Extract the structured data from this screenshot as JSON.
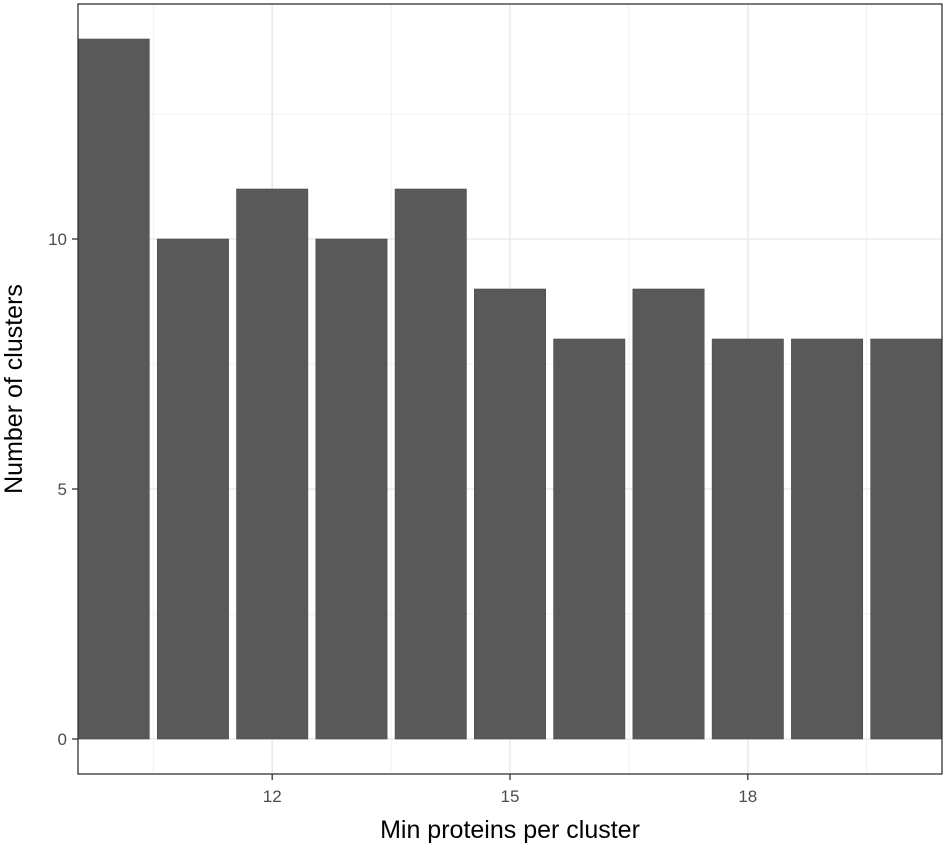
{
  "chart_data": {
    "type": "bar",
    "x": [
      10,
      11,
      12,
      13,
      14,
      15,
      16,
      17,
      18,
      19,
      20
    ],
    "values": [
      14,
      10,
      11,
      10,
      11,
      9,
      8,
      9,
      8,
      8,
      8
    ],
    "xlabel": "Min proteins per cluster",
    "ylabel": "Number of clusters",
    "xlim": [
      9.55,
      20.45
    ],
    "ylim": [
      -0.7,
      14.7
    ],
    "x_ticks": [
      12,
      15,
      18
    ],
    "y_ticks": [
      0,
      5,
      10
    ],
    "grid": true,
    "bar_color": "#595959",
    "grid_color": "#ebebeb",
    "panel_border_color": "#333333"
  }
}
